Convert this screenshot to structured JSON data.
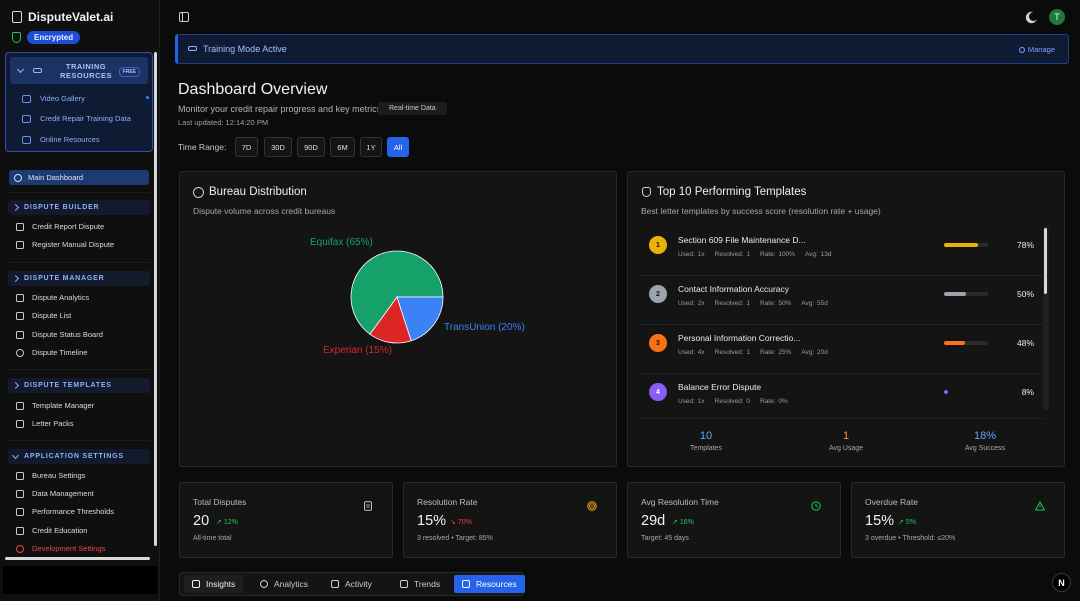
{
  "app": {
    "name": "DisputeValet.ai",
    "encrypted_label": "Encrypted"
  },
  "sidebar": {
    "training": {
      "title": "TRAINING RESOURCES",
      "badge": "FREE",
      "items": [
        {
          "label": "Video Gallery",
          "icon": "video-icon"
        },
        {
          "label": "Credit Repair Training Data",
          "icon": "database-icon"
        },
        {
          "label": "Online Resources",
          "icon": "cap-icon"
        }
      ]
    },
    "main_dashboard": "Main Dashboard",
    "sections": [
      {
        "title": "DISPUTE BUILDER",
        "items": [
          "Credit Report Dispute",
          "Register Manual Dispute"
        ]
      },
      {
        "title": "DISPUTE MANAGER",
        "items": [
          "Dispute Analytics",
          "Dispute List",
          "Dispute Status Board",
          "Dispute Timeline"
        ]
      },
      {
        "title": "DISPUTE TEMPLATES",
        "items": [
          "Template Manager",
          "Letter Packs"
        ]
      },
      {
        "title": "APPLICATION SETTINGS",
        "items": [
          "Bureau Settings",
          "Data Management",
          "Performance Thresholds",
          "Credit Education",
          "Development Settings"
        ]
      }
    ]
  },
  "user": {
    "initial": "T"
  },
  "banner": {
    "text": "Training Mode Active",
    "manage": "Manage"
  },
  "header": {
    "title": "Dashboard Overview",
    "subtitle": "Monitor your credit repair progress and key metrics",
    "badge": "Real-time Data",
    "updated": "Last updated: 12:14:20 PM",
    "range_label": "Time Range:",
    "ranges": [
      "7D",
      "30D",
      "90D",
      "6M",
      "1Y",
      "All"
    ],
    "active_range": "All"
  },
  "bureau": {
    "title": "Bureau Distribution",
    "subtitle": "Dispute volume across credit bureaus",
    "labels": {
      "equifax": "Equifax (65%)",
      "transunion": "TransUnion (20%)",
      "experian": "Experian (15%)"
    }
  },
  "chart_data": {
    "type": "pie",
    "slices": [
      {
        "name": "Equifax",
        "value": 65,
        "color": "#16a06a"
      },
      {
        "name": "TransUnion",
        "value": 20,
        "color": "#3b82f6"
      },
      {
        "name": "Experian",
        "value": 15,
        "color": "#dc2626"
      }
    ]
  },
  "templates": {
    "title": "Top 10 Performing Templates",
    "subtitle": "Best letter templates by success score (resolution rate + usage)",
    "rows": [
      {
        "rank": "1",
        "name": "Section 609 File Maintenance D...",
        "used": "Used: 1x",
        "resolved": "Resolved: 1",
        "rate": "Rate: 100%",
        "avg": "Avg: 13d",
        "pct": "78%",
        "score": 78,
        "color": "#eab308"
      },
      {
        "rank": "2",
        "name": "Contact Information Accuracy",
        "used": "Used: 2x",
        "resolved": "Resolved: 1",
        "rate": "Rate: 50%",
        "avg": "Avg: 55d",
        "pct": "50%",
        "score": 50,
        "color": "#9ca3af"
      },
      {
        "rank": "3",
        "name": "Personal Information Correctio...",
        "used": "Used: 4x",
        "resolved": "Resolved: 1",
        "rate": "Rate: 25%",
        "avg": "Avg: 20d",
        "pct": "48%",
        "score": 48,
        "color": "#f97316"
      },
      {
        "rank": "4",
        "name": "Balance Error Dispute",
        "used": "Used: 1x",
        "resolved": "Resolved: 0",
        "rate": "Rate: 0%",
        "avg": "",
        "pct": "8%",
        "score": 8,
        "color": "#8b5cf6"
      }
    ],
    "summary": [
      {
        "value": "10",
        "label": "Templates",
        "color": "#60a5fa"
      },
      {
        "value": "1",
        "label": "Avg Usage",
        "color": "#fb923c"
      },
      {
        "value": "18%",
        "label": "Avg Success",
        "color": "#60a5fa"
      }
    ]
  },
  "stats": [
    {
      "title": "Total Disputes",
      "value": "20",
      "delta": "12%",
      "delta_color": "#22c55e",
      "foot": "All-time total",
      "icon": "document-icon"
    },
    {
      "title": "Resolution Rate",
      "value": "15%",
      "delta": "70%",
      "delta_color": "#ef4444",
      "foot": "3 resolved • Target: 85%",
      "icon": "target-icon"
    },
    {
      "title": "Avg Resolution Time",
      "value": "29d",
      "delta": "16%",
      "delta_color": "#22c55e",
      "foot": "Target: 45 days",
      "icon": "clock-icon"
    },
    {
      "title": "Overdue Rate",
      "value": "15%",
      "delta": "5%",
      "delta_color": "#22c55e",
      "foot": "3 overdue • Threshold: ≤20%",
      "icon": "warning-icon"
    }
  ],
  "tabs": [
    "Insights",
    "Analytics",
    "Activity",
    "Trends",
    "Resources"
  ]
}
